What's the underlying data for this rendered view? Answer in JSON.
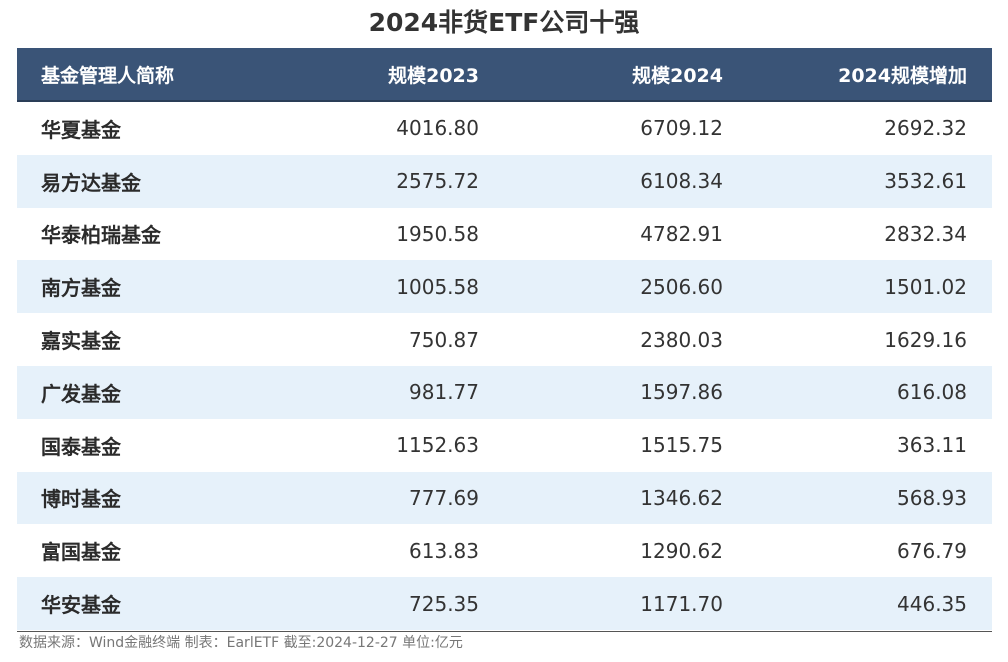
{
  "title": "2024非货ETF公司十强",
  "table": {
    "headers": [
      "基金管理人简称",
      "规模2023",
      "规模2024",
      "2024规模增加"
    ],
    "rows": [
      [
        "华夏基金",
        "4016.80",
        "6709.12",
        "2692.32"
      ],
      [
        "易方达基金",
        "2575.72",
        "6108.34",
        "3532.61"
      ],
      [
        "华泰柏瑞基金",
        "1950.58",
        "4782.91",
        "2832.34"
      ],
      [
        "南方基金",
        "1005.58",
        "2506.60",
        "1501.02"
      ],
      [
        "嘉实基金",
        "750.87",
        "2380.03",
        "1629.16"
      ],
      [
        "广发基金",
        "981.77",
        "1597.86",
        "616.08"
      ],
      [
        "国泰基金",
        "1152.63",
        "1515.75",
        "363.11"
      ],
      [
        "博时基金",
        "777.69",
        "1346.62",
        "568.93"
      ],
      [
        "富国基金",
        "613.83",
        "1290.62",
        "676.79"
      ],
      [
        "华安基金",
        "725.35",
        "1171.70",
        "446.35"
      ]
    ]
  },
  "footer": "数据来源：Wind金融终端 制表：EarlETF 截至:2024-12-27 单位:亿元",
  "colors": {
    "header_bg": "#3a5477",
    "header_text": "#ffffff",
    "row_alt_bg": "#e6f1fa",
    "text": "#333333"
  }
}
